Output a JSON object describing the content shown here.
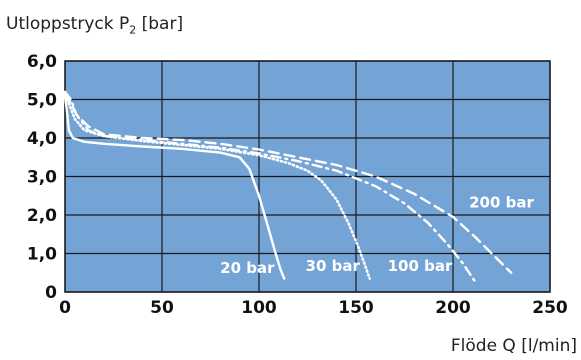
{
  "chart_data": {
    "type": "line",
    "ylabel_main": "Utloppstryck P",
    "ylabel_sub": "2",
    "ylabel_unit": " [bar]",
    "xlabel": "Flöde Q [l/min]",
    "xlim": [
      0,
      250
    ],
    "ylim": [
      0,
      6
    ],
    "xticks": [
      0,
      50,
      100,
      150,
      200,
      250
    ],
    "yticks": [
      0,
      1,
      2,
      3,
      4,
      5,
      6
    ],
    "ytick_labels": [
      "0",
      "1,0",
      "2,0",
      "3,0",
      "4,0",
      "5,0",
      "6,0"
    ],
    "xtick_labels": [
      "0",
      "50",
      "100",
      "150",
      "200",
      "250"
    ],
    "grid": true,
    "colors": {
      "plot_bg": "#74a3d6",
      "grid": "#1a1a1a",
      "curve": "#ffffff"
    },
    "series": [
      {
        "name": "20 bar",
        "style": "solid",
        "x": [
          0,
          1,
          2,
          4,
          10,
          20,
          40,
          60,
          80,
          90,
          95,
          100,
          104,
          108,
          111,
          113
        ],
        "y": [
          5.1,
          4.7,
          4.2,
          4.0,
          3.9,
          3.85,
          3.78,
          3.72,
          3.62,
          3.5,
          3.2,
          2.5,
          1.8,
          1.1,
          0.6,
          0.35
        ]
      },
      {
        "name": "30 bar",
        "style": "dotted",
        "x": [
          0,
          2,
          5,
          10,
          20,
          40,
          60,
          80,
          100,
          115,
          125,
          132,
          140,
          146,
          151,
          155,
          157
        ],
        "y": [
          5.1,
          4.9,
          4.5,
          4.2,
          4.05,
          3.92,
          3.82,
          3.72,
          3.55,
          3.35,
          3.15,
          2.9,
          2.4,
          1.8,
          1.2,
          0.65,
          0.35
        ]
      },
      {
        "name": "100 bar",
        "style": "dashdot",
        "x": [
          0,
          3,
          6,
          12,
          20,
          40,
          60,
          80,
          100,
          120,
          140,
          160,
          175,
          187,
          197,
          205,
          211
        ],
        "y": [
          5.2,
          5.0,
          4.6,
          4.2,
          4.05,
          3.95,
          3.85,
          3.75,
          3.6,
          3.4,
          3.15,
          2.75,
          2.3,
          1.8,
          1.25,
          0.75,
          0.3
        ]
      },
      {
        "name": "200 bar",
        "style": "dashed",
        "x": [
          0,
          3,
          6,
          12,
          20,
          40,
          60,
          80,
          100,
          120,
          140,
          160,
          180,
          200,
          212,
          222,
          230
        ],
        "y": [
          5.15,
          4.9,
          4.6,
          4.3,
          4.1,
          4.0,
          3.95,
          3.85,
          3.7,
          3.5,
          3.3,
          3.0,
          2.55,
          1.95,
          1.4,
          0.9,
          0.5
        ]
      }
    ],
    "annotations": [
      {
        "text": "20 bar",
        "x": 94,
        "y": 0.5
      },
      {
        "text": "30 bar",
        "x": 138,
        "y": 0.55
      },
      {
        "text": "100 bar",
        "x": 183,
        "y": 0.55
      },
      {
        "text": "200 bar",
        "x": 225,
        "y": 2.2
      }
    ]
  }
}
